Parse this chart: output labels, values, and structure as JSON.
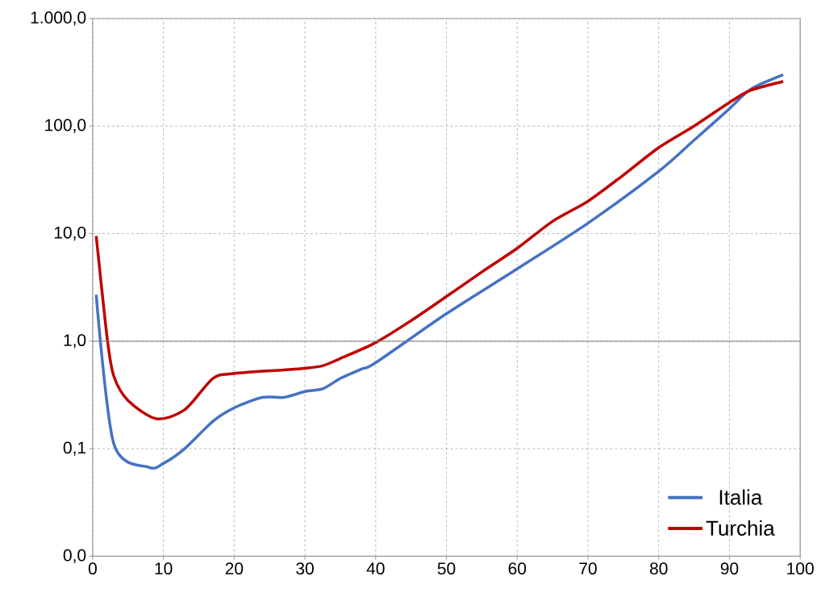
{
  "chart_data": {
    "type": "line",
    "log": "y",
    "grid": true,
    "legend": "bottom right",
    "line_style": "solid",
    "marker": "none",
    "xlim": [
      0,
      100
    ],
    "xticks": [
      0,
      10,
      20,
      30,
      40,
      50,
      60,
      70,
      80,
      90,
      100
    ],
    "ylim": [
      0.01,
      1000
    ],
    "yticks": [
      {
        "value": 0.01,
        "label": "0,0"
      },
      {
        "value": 0.1,
        "label": "0,1"
      },
      {
        "value": 1,
        "label": "1,0"
      },
      {
        "value": 10,
        "label": "10,0"
      },
      {
        "value": 100,
        "label": "100,0"
      },
      {
        "value": 1000,
        "label": "1.000,0"
      }
    ],
    "ref_lines": [
      {
        "axis": "y",
        "value": 1,
        "color": "#808080",
        "line_style": "solid"
      }
    ],
    "series": [
      {
        "name": "Italia",
        "color": "#4472c4",
        "x": [
          0.5,
          3,
          8,
          10,
          13,
          17,
          20,
          24,
          27,
          30,
          32.5,
          35,
          38,
          40,
          50,
          60,
          70,
          80,
          85,
          90,
          93,
          97.6
        ],
        "values": [
          2.7,
          0.11,
          0.067,
          0.073,
          0.1,
          0.18,
          0.24,
          0.3,
          0.3,
          0.34,
          0.36,
          0.45,
          0.55,
          0.63,
          1.8,
          4.7,
          12.5,
          38,
          74,
          145,
          220,
          300
        ]
      },
      {
        "name": "Turchia",
        "color": "#c00000",
        "x": [
          0.5,
          2.1,
          3,
          5,
          9,
          13,
          17,
          20,
          27,
          30,
          32.5,
          35,
          40,
          45,
          50,
          55,
          60,
          65,
          70,
          75,
          80,
          85,
          90,
          93,
          97.6
        ],
        "values": [
          9.5,
          1.0,
          0.47,
          0.28,
          0.19,
          0.23,
          0.45,
          0.5,
          0.54,
          0.56,
          0.59,
          0.69,
          0.97,
          1.55,
          2.6,
          4.4,
          7.3,
          13,
          20,
          35,
          63,
          100,
          166,
          215,
          260
        ]
      }
    ]
  }
}
